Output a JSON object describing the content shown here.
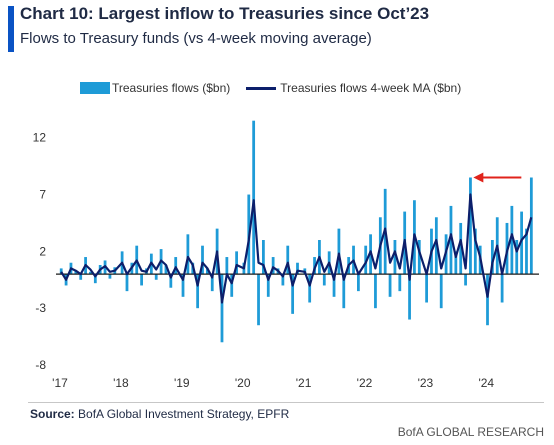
{
  "header": {
    "title": "Chart 10: Largest inflow to Treasuries since Oct’23",
    "subtitle": "Flows to Treasury funds (vs 4-week moving average)"
  },
  "footer": {
    "source_label": "Source:",
    "source_text": " BofA Global Investment Strategy, EPFR",
    "brand": "BofA GLOBAL RESEARCH"
  },
  "colors": {
    "bars": "#1e9bd7",
    "ma_line": "#0c1f6b",
    "arrow": "#e0231b",
    "accent": "#0a53c4"
  },
  "chart_data": {
    "type": "bar",
    "title": "Chart 10: Largest inflow to Treasuries since Oct’23",
    "xlabel": "",
    "ylabel": "",
    "ylim": [
      -8,
      14
    ],
    "yticks": [
      12,
      7,
      2,
      -3,
      -8
    ],
    "xticks": [
      "'17",
      "'18",
      "'19",
      "'20",
      "'21",
      "'22",
      "'23",
      "'24"
    ],
    "grid": false,
    "legend_position": "top",
    "annotation": "red arrow pointing left at the latest weekly inflow peak (~8.5 $bn), level with the Oct'23 high",
    "x_range_years": [
      2017.0,
      2024.8
    ],
    "series": [
      {
        "name": "Treasuries flows ($bn)",
        "type": "bar",
        "x": [
          2017.02,
          2017.1,
          2017.18,
          2017.26,
          2017.34,
          2017.42,
          2017.5,
          2017.58,
          2017.66,
          2017.74,
          2017.82,
          2017.9,
          2018.02,
          2018.1,
          2018.18,
          2018.26,
          2018.34,
          2018.42,
          2018.5,
          2018.58,
          2018.66,
          2018.74,
          2018.82,
          2018.9,
          2019.02,
          2019.1,
          2019.18,
          2019.26,
          2019.34,
          2019.42,
          2019.5,
          2019.58,
          2019.66,
          2019.74,
          2019.82,
          2019.9,
          2020.02,
          2020.1,
          2020.18,
          2020.26,
          2020.34,
          2020.42,
          2020.5,
          2020.58,
          2020.66,
          2020.74,
          2020.82,
          2020.9,
          2021.02,
          2021.1,
          2021.18,
          2021.26,
          2021.34,
          2021.42,
          2021.5,
          2021.58,
          2021.66,
          2021.74,
          2021.82,
          2021.9,
          2022.02,
          2022.1,
          2022.18,
          2022.26,
          2022.34,
          2022.42,
          2022.5,
          2022.58,
          2022.66,
          2022.74,
          2022.82,
          2022.9,
          2023.02,
          2023.1,
          2023.18,
          2023.26,
          2023.34,
          2023.42,
          2023.5,
          2023.58,
          2023.66,
          2023.74,
          2023.82,
          2023.9,
          2024.02,
          2024.1,
          2024.18,
          2024.26,
          2024.34,
          2024.42,
          2024.5,
          2024.58,
          2024.66,
          2024.74
        ],
        "values": [
          0.5,
          -1.0,
          1.0,
          0.3,
          -0.5,
          1.5,
          0.2,
          -0.8,
          0.8,
          1.2,
          -0.4,
          0.6,
          2.0,
          -1.5,
          1.0,
          2.5,
          -1.0,
          0.5,
          1.8,
          -0.5,
          2.2,
          0.8,
          -1.2,
          1.5,
          -2.0,
          3.5,
          1.0,
          -3.0,
          2.5,
          0.5,
          -1.5,
          4.0,
          -6.0,
          1.5,
          -2.0,
          2.0,
          1.0,
          7.0,
          13.5,
          -4.5,
          3.0,
          -2.0,
          1.5,
          0.5,
          -1.0,
          2.5,
          -3.5,
          1.0,
          0.5,
          -2.5,
          1.5,
          3.0,
          -1.0,
          2.0,
          -2.0,
          4.0,
          -3.0,
          1.5,
          2.5,
          -1.5,
          2.5,
          3.5,
          -3.0,
          5.0,
          7.5,
          -2.0,
          3.0,
          -1.5,
          5.5,
          -4.0,
          6.5,
          3.0,
          -2.5,
          4.0,
          5.0,
          -3.0,
          3.5,
          6.0,
          2.0,
          4.5,
          -1.0,
          8.5,
          4.0,
          2.5,
          -4.5,
          3.0,
          5.0,
          -2.5,
          4.5,
          6.0,
          3.0,
          5.5,
          4.0,
          8.5
        ]
      },
      {
        "name": "Treasuries flows 4-week MA ($bn)",
        "type": "line",
        "x": [
          2017.02,
          2017.1,
          2017.18,
          2017.26,
          2017.34,
          2017.42,
          2017.5,
          2017.58,
          2017.66,
          2017.74,
          2017.82,
          2017.9,
          2018.02,
          2018.1,
          2018.18,
          2018.26,
          2018.34,
          2018.42,
          2018.5,
          2018.58,
          2018.66,
          2018.74,
          2018.82,
          2018.9,
          2019.02,
          2019.1,
          2019.18,
          2019.26,
          2019.34,
          2019.42,
          2019.5,
          2019.58,
          2019.66,
          2019.74,
          2019.82,
          2019.9,
          2020.02,
          2020.1,
          2020.18,
          2020.26,
          2020.34,
          2020.42,
          2020.5,
          2020.58,
          2020.66,
          2020.74,
          2020.82,
          2020.9,
          2021.02,
          2021.1,
          2021.18,
          2021.26,
          2021.34,
          2021.42,
          2021.5,
          2021.58,
          2021.66,
          2021.74,
          2021.82,
          2021.9,
          2022.02,
          2022.1,
          2022.18,
          2022.26,
          2022.34,
          2022.42,
          2022.5,
          2022.58,
          2022.66,
          2022.74,
          2022.82,
          2022.9,
          2023.02,
          2023.1,
          2023.18,
          2023.26,
          2023.34,
          2023.42,
          2023.5,
          2023.58,
          2023.66,
          2023.74,
          2023.82,
          2023.9,
          2024.02,
          2024.1,
          2024.18,
          2024.26,
          2024.34,
          2024.42,
          2024.5,
          2024.58,
          2024.66,
          2024.74
        ],
        "values": [
          0.2,
          -0.5,
          0.5,
          0.3,
          0.0,
          0.8,
          0.4,
          -0.2,
          0.4,
          0.7,
          0.2,
          0.3,
          1.0,
          0.0,
          0.6,
          1.2,
          0.3,
          0.2,
          1.0,
          0.4,
          1.2,
          0.8,
          -0.3,
          0.6,
          -0.5,
          1.5,
          0.8,
          -1.0,
          1.0,
          0.5,
          -0.3,
          2.0,
          -2.5,
          0.0,
          -0.8,
          0.8,
          0.5,
          3.0,
          6.5,
          1.0,
          0.8,
          -0.5,
          0.6,
          0.3,
          -0.2,
          1.0,
          -1.0,
          0.3,
          0.2,
          -1.0,
          0.5,
          1.5,
          0.2,
          1.0,
          -0.5,
          1.8,
          -0.5,
          0.8,
          1.2,
          0.0,
          1.0,
          2.0,
          0.5,
          2.5,
          4.0,
          1.0,
          2.0,
          0.5,
          3.0,
          -0.5,
          3.5,
          2.0,
          0.0,
          2.0,
          3.0,
          0.5,
          2.0,
          3.5,
          1.5,
          3.0,
          0.5,
          7.0,
          3.0,
          1.5,
          -2.0,
          1.0,
          2.5,
          0.0,
          2.0,
          3.5,
          2.0,
          3.0,
          3.5,
          5.0
        ]
      }
    ]
  }
}
